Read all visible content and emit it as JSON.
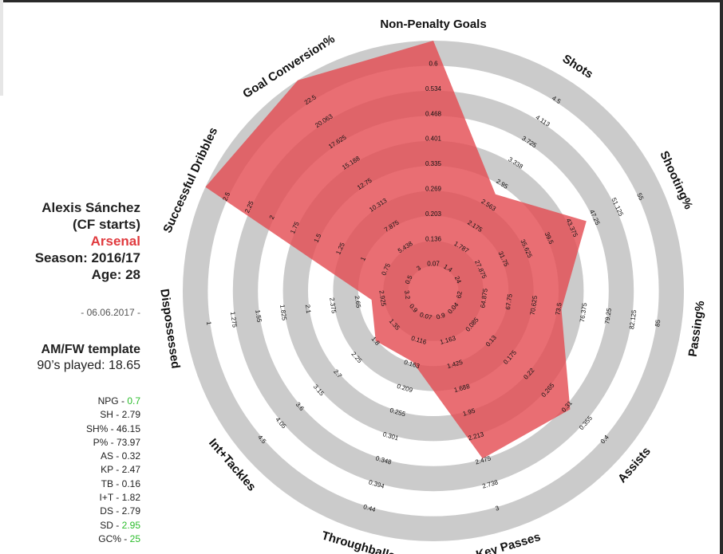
{
  "player": {
    "name": "Alexis Sánchez",
    "position": "(CF starts)",
    "club": "Arsenal",
    "season": "Season: 2016/17",
    "age": "Age: 28",
    "date": "- 06.06.2017 -",
    "template": "AM/FW template",
    "played": "90’s played: 18.65"
  },
  "stats": [
    {
      "label": "NPG",
      "value": "0.7",
      "highlight": true
    },
    {
      "label": "SH",
      "value": "2.79",
      "highlight": false
    },
    {
      "label": "SH%",
      "value": "46.15",
      "highlight": false
    },
    {
      "label": "P%",
      "value": "73.97",
      "highlight": false
    },
    {
      "label": "AS",
      "value": "0.32",
      "highlight": false
    },
    {
      "label": "KP",
      "value": "2.47",
      "highlight": false
    },
    {
      "label": "TB",
      "value": "0.16",
      "highlight": false
    },
    {
      "label": "I+T",
      "value": "1.82",
      "highlight": false
    },
    {
      "label": "DS",
      "value": "2.79",
      "highlight": false
    },
    {
      "label": "SD",
      "value": "2.95",
      "highlight": true
    },
    {
      "label": "GC%",
      "value": "25",
      "highlight": true
    }
  ],
  "colors": {
    "ring_light": "#cbcbcb",
    "ring_dark": "#a6a6a6",
    "polygon": "#e34a50",
    "club": "#e03a3e",
    "highlight": "#2bbd2b"
  },
  "chart_data": {
    "type": "radar",
    "axes": [
      {
        "label": "Non-Penalty Goals",
        "ticks": [
          "0.07",
          "0.136",
          "0.203",
          "0.269",
          "0.335",
          "0.401",
          "0.468",
          "0.534",
          "0.6"
        ],
        "value": 0.7
      },
      {
        "label": "Shots",
        "ticks": [
          "1.4",
          "1.787",
          "2.175",
          "2.563",
          "2.95",
          "3.338",
          "3.725",
          "4.113",
          "4.5"
        ],
        "value": 2.79
      },
      {
        "label": "Shooting%",
        "ticks": [
          "24",
          "27.875",
          "31.75",
          "35.625",
          "39.5",
          "43.375",
          "47.25",
          "51.125",
          "55"
        ],
        "value": 46.15
      },
      {
        "label": "Passing%",
        "ticks": [
          "62",
          "64.875",
          "67.75",
          "70.625",
          "73.5",
          "76.375",
          "79.25",
          "82.125",
          "85"
        ],
        "value": 73.97
      },
      {
        "label": "Assists",
        "ticks": [
          "0.04",
          "0.085",
          "0.13",
          "0.175",
          "0.22",
          "0.265",
          "0.31",
          "0.355",
          "0.4"
        ],
        "value": 0.32
      },
      {
        "label": "Key Passes",
        "ticks": [
          "0.9",
          "1.163",
          "1.425",
          "1.688",
          "1.95",
          "2.213",
          "2.475",
          "2.738",
          "3"
        ],
        "value": 2.47
      },
      {
        "label": "Throughballs",
        "ticks": [
          "0.07",
          "0.116",
          "0.163",
          "0.209",
          "0.255",
          "0.301",
          "0.348",
          "0.394",
          "0.44"
        ],
        "value": 0.16
      },
      {
        "label": "Int+Tackles",
        "ticks": [
          "0.9",
          "1.35",
          "1.8",
          "2.25",
          "2.7",
          "3.15",
          "3.6",
          "4.05",
          "4.5"
        ],
        "value": 1.82
      },
      {
        "label": "Dispossessed",
        "ticks": [
          "3.2",
          "2.925",
          "2.65",
          "2.375",
          "2.1",
          "1.825",
          "1.55",
          "1.275",
          "1"
        ],
        "value": 2.79
      },
      {
        "label": "Successful Dribbles",
        "ticks": [
          "0.5",
          "0.75",
          "1",
          "1.25",
          "1.5",
          "1.75",
          "2",
          "2.25",
          "2.5"
        ],
        "value": 2.95
      },
      {
        "label": "Goal Conversion%",
        "ticks": [
          "3",
          "5.438",
          "7.875",
          "10.313",
          "12.75",
          "15.188",
          "17.625",
          "20.063",
          "22.5"
        ],
        "value": 25
      }
    ]
  }
}
